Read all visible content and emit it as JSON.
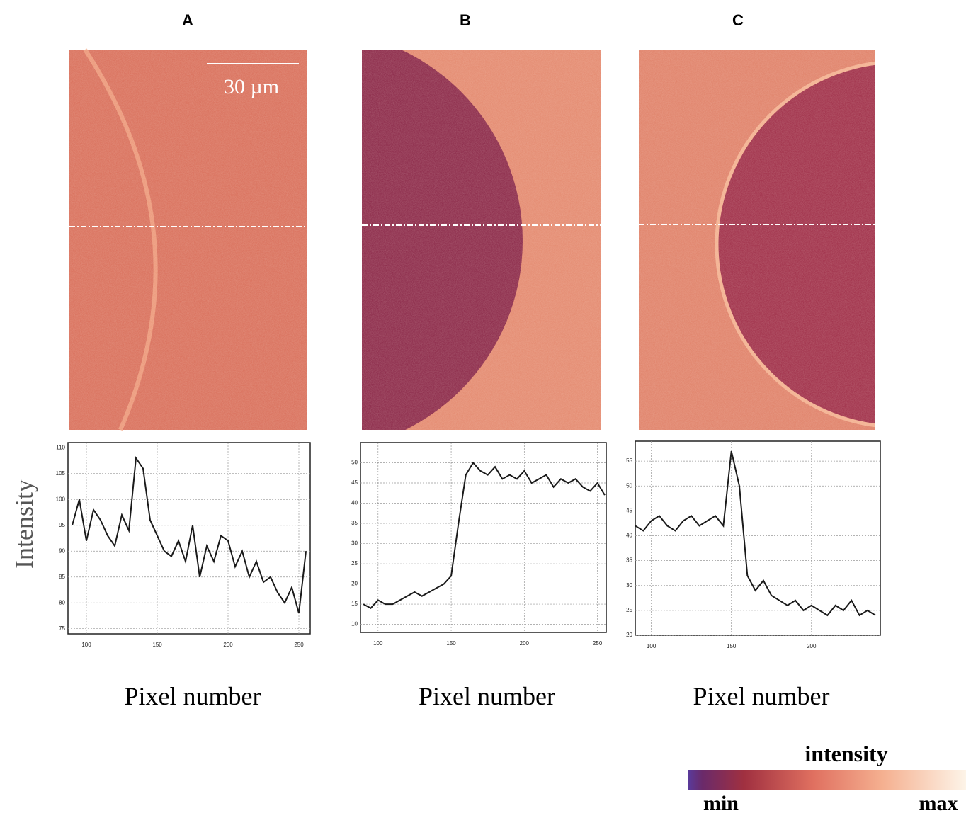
{
  "chart_data": [
    {
      "type": "line",
      "title": "A",
      "xlabel": "Pixel number",
      "ylabel": "Intensity",
      "xlim": [
        87,
        258
      ],
      "ylim": [
        74,
        111
      ],
      "xticks": [
        100,
        150,
        200,
        250
      ],
      "yticks": [
        75,
        80,
        85,
        90,
        95,
        100,
        105,
        110
      ],
      "grid": true,
      "x": [
        90,
        95,
        100,
        105,
        110,
        115,
        120,
        125,
        130,
        135,
        140,
        145,
        150,
        155,
        160,
        165,
        170,
        175,
        180,
        185,
        190,
        195,
        200,
        205,
        210,
        215,
        220,
        225,
        230,
        235,
        240,
        245,
        250,
        255
      ],
      "series": [
        {
          "color": "#1a1a1a",
          "values": [
            95,
            100,
            92,
            98,
            96,
            93,
            91,
            97,
            94,
            108,
            106,
            96,
            93,
            90,
            89,
            92,
            88,
            95,
            85,
            91,
            88,
            93,
            92,
            87,
            90,
            85,
            88,
            84,
            85,
            82,
            80,
            83,
            78,
            90
          ]
        }
      ]
    },
    {
      "type": "line",
      "title": "B",
      "xlabel": "Pixel number",
      "xlim": [
        88,
        256
      ],
      "ylim": [
        8,
        55
      ],
      "xticks": [
        100,
        150,
        200,
        250
      ],
      "yticks": [
        10,
        15,
        20,
        25,
        30,
        35,
        40,
        45,
        50
      ],
      "grid": true,
      "x": [
        90,
        95,
        100,
        105,
        110,
        115,
        120,
        125,
        130,
        135,
        140,
        145,
        150,
        155,
        160,
        165,
        170,
        175,
        180,
        185,
        190,
        195,
        200,
        205,
        210,
        215,
        220,
        225,
        230,
        235,
        240,
        245,
        250,
        255
      ],
      "series": [
        {
          "color": "#1a1a1a",
          "values": [
            15,
            14,
            16,
            15,
            15,
            16,
            17,
            18,
            17,
            18,
            19,
            20,
            22,
            35,
            47,
            50,
            48,
            47,
            49,
            46,
            47,
            46,
            48,
            45,
            46,
            47,
            44,
            46,
            45,
            46,
            44,
            43,
            45,
            42
          ]
        }
      ]
    },
    {
      "type": "line",
      "title": "C",
      "xlabel": "Pixel number",
      "xlim": [
        90,
        243
      ],
      "ylim": [
        20,
        59
      ],
      "xticks": [
        100,
        150,
        200
      ],
      "yticks": [
        20,
        25,
        30,
        35,
        40,
        45,
        50,
        55
      ],
      "grid": true,
      "x": [
        90,
        95,
        100,
        105,
        110,
        115,
        120,
        125,
        130,
        135,
        140,
        145,
        150,
        155,
        160,
        165,
        170,
        175,
        180,
        185,
        190,
        195,
        200,
        205,
        210,
        215,
        220,
        225,
        230,
        235,
        240
      ],
      "series": [
        {
          "color": "#1a1a1a",
          "values": [
            42,
            41,
            43,
            44,
            42,
            41,
            43,
            44,
            42,
            43,
            44,
            42,
            57,
            50,
            32,
            29,
            31,
            28,
            27,
            26,
            27,
            25,
            26,
            25,
            24,
            26,
            25,
            27,
            24,
            25,
            24
          ]
        }
      ]
    }
  ],
  "scale_bar": "30 µm",
  "colorbar": {
    "title": "intensity",
    "min": "min",
    "max": "max"
  }
}
